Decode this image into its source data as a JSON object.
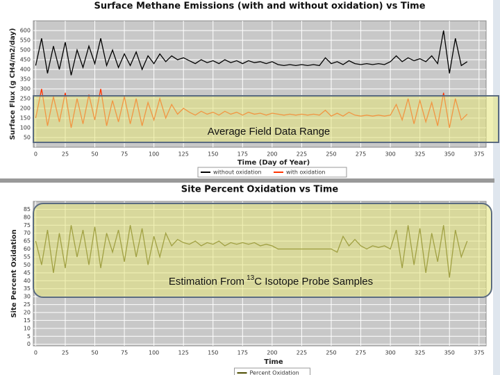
{
  "chart_data": [
    {
      "type": "line",
      "title": "Surface Methane Emissions (with and without oxidation) vs Time",
      "x_label": "Time (Day of Year)",
      "y_label": "Surface Flux (g CH4/m2/day)",
      "annotation": "Average Field Data Range",
      "xlim": [
        -2,
        381
      ],
      "ylim": [
        0,
        650
      ],
      "xticks": [
        0,
        25,
        50,
        75,
        100,
        125,
        150,
        175,
        200,
        225,
        250,
        275,
        300,
        325,
        350,
        375
      ],
      "yticks": [
        50,
        100,
        150,
        200,
        250,
        300,
        350,
        400,
        450,
        500,
        550,
        600
      ],
      "grid": true,
      "x": [
        0,
        5,
        10,
        15,
        20,
        25,
        30,
        35,
        40,
        45,
        50,
        55,
        60,
        65,
        70,
        75,
        80,
        85,
        90,
        95,
        100,
        105,
        110,
        115,
        120,
        125,
        130,
        135,
        140,
        145,
        150,
        155,
        160,
        165,
        170,
        175,
        180,
        185,
        190,
        195,
        200,
        205,
        210,
        215,
        220,
        225,
        230,
        235,
        240,
        245,
        250,
        255,
        260,
        265,
        270,
        275,
        280,
        285,
        290,
        295,
        300,
        305,
        310,
        315,
        320,
        325,
        330,
        335,
        340,
        345,
        350,
        355,
        360,
        365
      ],
      "series": [
        {
          "name": "without oxidation",
          "color": "#000000",
          "values": [
            420,
            560,
            380,
            520,
            400,
            540,
            370,
            500,
            410,
            520,
            430,
            560,
            420,
            500,
            410,
            480,
            420,
            490,
            400,
            470,
            430,
            480,
            440,
            470,
            450,
            460,
            445,
            430,
            450,
            435,
            445,
            430,
            450,
            435,
            445,
            430,
            445,
            435,
            440,
            430,
            440,
            425,
            420,
            425,
            420,
            425,
            420,
            425,
            420,
            460,
            430,
            440,
            425,
            445,
            430,
            425,
            430,
            425,
            430,
            425,
            440,
            470,
            440,
            460,
            445,
            455,
            440,
            470,
            430,
            600,
            380,
            560,
            420,
            440
          ]
        },
        {
          "name": "with oxidation",
          "color": "#ff3300",
          "values": [
            150,
            300,
            110,
            260,
            130,
            280,
            100,
            250,
            120,
            270,
            140,
            300,
            110,
            240,
            130,
            260,
            120,
            250,
            110,
            230,
            140,
            250,
            150,
            220,
            170,
            200,
            180,
            165,
            185,
            170,
            180,
            165,
            185,
            170,
            180,
            165,
            180,
            170,
            175,
            165,
            175,
            170,
            165,
            170,
            165,
            170,
            165,
            170,
            165,
            190,
            160,
            175,
            160,
            180,
            165,
            160,
            165,
            160,
            165,
            160,
            165,
            220,
            140,
            250,
            120,
            240,
            130,
            230,
            110,
            280,
            100,
            250,
            140,
            170
          ]
        }
      ]
    },
    {
      "type": "line",
      "title": "Site Percent Oxidation vs Time",
      "x_label": "Time",
      "y_label": "Site Percent Oxidation",
      "annotation_parts": [
        "Estimation From",
        "13",
        "C Isotope Probe Samples"
      ],
      "xlim": [
        -2,
        381
      ],
      "ylim": [
        -1,
        90
      ],
      "xticks": [
        0,
        25,
        50,
        75,
        100,
        125,
        150,
        175,
        200,
        225,
        250,
        275,
        300,
        325,
        350,
        375
      ],
      "yticks": [
        0,
        5,
        10,
        15,
        20,
        25,
        30,
        35,
        40,
        45,
        50,
        55,
        60,
        65,
        70,
        75,
        80,
        85
      ],
      "grid": true,
      "x": [
        0,
        5,
        10,
        15,
        20,
        25,
        30,
        35,
        40,
        45,
        50,
        55,
        60,
        65,
        70,
        75,
        80,
        85,
        90,
        95,
        100,
        105,
        110,
        115,
        120,
        125,
        130,
        135,
        140,
        145,
        150,
        155,
        160,
        165,
        170,
        175,
        180,
        185,
        190,
        195,
        200,
        205,
        210,
        215,
        220,
        225,
        230,
        235,
        240,
        245,
        250,
        255,
        260,
        265,
        270,
        275,
        280,
        285,
        290,
        295,
        300,
        305,
        310,
        315,
        320,
        325,
        330,
        335,
        340,
        345,
        350,
        355,
        360,
        365
      ],
      "series": [
        {
          "name": "Percent Oxidation",
          "color": "#4d4d00",
          "values": [
            65,
            50,
            72,
            45,
            70,
            48,
            75,
            55,
            72,
            50,
            74,
            48,
            70,
            58,
            72,
            52,
            75,
            55,
            73,
            50,
            68,
            55,
            70,
            62,
            66,
            64,
            63,
            65,
            62,
            64,
            63,
            65,
            62,
            64,
            63,
            64,
            63,
            64,
            62,
            63,
            62,
            60,
            60,
            60,
            60,
            60,
            60,
            60,
            60,
            60,
            60,
            58,
            68,
            62,
            66,
            62,
            60,
            62,
            61,
            62,
            60,
            72,
            48,
            75,
            50,
            73,
            45,
            70,
            52,
            75,
            42,
            72,
            55,
            65
          ]
        }
      ]
    }
  ]
}
